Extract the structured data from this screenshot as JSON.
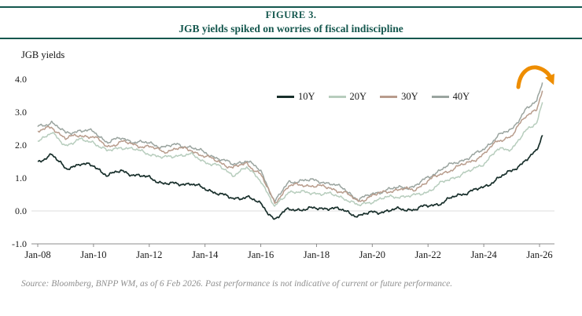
{
  "figure": {
    "label": "FIGURE 3.",
    "title": "JGB yields spiked on worries of fiscal indiscipline"
  },
  "source": "Source: Bloomberg, BNPP WM, as of 6 Feb 2026. Past performance is not indicative of current or future performance.",
  "colors": {
    "accent": "#14574E",
    "arrow": "#EE8D00",
    "axis_line": "#8c8c8c",
    "zero_line": "#dcdcdc",
    "text": "#1a1a1a"
  },
  "chart_data": {
    "type": "line",
    "title": "JGB yields",
    "xlabel": "",
    "ylabel": "",
    "ylim": [
      -1.0,
      4.0
    ],
    "grid": false,
    "legend_position": "top-center-inside",
    "y_ticks": [
      {
        "value": -1.0,
        "label": "-1.0"
      },
      {
        "value": 0.0,
        "label": "0.0"
      },
      {
        "value": 1.0,
        "label": "1.0"
      },
      {
        "value": 2.0,
        "label": "2.0"
      },
      {
        "value": 3.0,
        "label": "3.0"
      },
      {
        "value": 4.0,
        "label": "4.0"
      }
    ],
    "x_ticks": [
      {
        "year": 2008,
        "label": "Jan-08"
      },
      {
        "year": 2010,
        "label": "Jan-10"
      },
      {
        "year": 2012,
        "label": "Jan-12"
      },
      {
        "year": 2014,
        "label": "Jan-14"
      },
      {
        "year": 2016,
        "label": "Jan-16"
      },
      {
        "year": 2018,
        "label": "Jan-18"
      },
      {
        "year": 2020,
        "label": "Jan-20"
      },
      {
        "year": 2022,
        "label": "Jan-22"
      },
      {
        "year": 2024,
        "label": "Jan-24"
      },
      {
        "year": 2026,
        "label": "Jan-26"
      }
    ],
    "x_years": [
      2008.0,
      2008.5,
      2009.0,
      2009.5,
      2010.0,
      2010.5,
      2011.0,
      2011.5,
      2012.0,
      2012.5,
      2013.0,
      2013.5,
      2014.0,
      2014.5,
      2015.0,
      2015.5,
      2016.0,
      2016.5,
      2017.0,
      2017.5,
      2018.0,
      2018.5,
      2019.0,
      2019.5,
      2020.0,
      2020.5,
      2021.0,
      2021.5,
      2022.0,
      2022.5,
      2023.0,
      2023.5,
      2024.0,
      2024.5,
      2025.0,
      2025.5,
      2025.9,
      2026.1
    ],
    "series": [
      {
        "name": "10Y",
        "color": "#182F2B",
        "y": [
          1.45,
          1.75,
          1.25,
          1.45,
          1.35,
          1.1,
          1.2,
          1.1,
          1.0,
          0.85,
          0.8,
          0.85,
          0.65,
          0.55,
          0.35,
          0.45,
          0.2,
          -0.25,
          0.05,
          0.05,
          0.07,
          0.1,
          0.0,
          -0.15,
          -0.05,
          0.0,
          0.05,
          0.05,
          0.15,
          0.25,
          0.45,
          0.6,
          0.7,
          1.0,
          1.2,
          1.55,
          1.8,
          2.3
        ]
      },
      {
        "name": "20Y",
        "color": "#B7CDBD",
        "y": [
          2.15,
          2.35,
          2.0,
          2.15,
          2.1,
          1.8,
          1.95,
          1.85,
          1.75,
          1.6,
          1.7,
          1.7,
          1.5,
          1.35,
          1.1,
          1.3,
          0.95,
          0.1,
          0.6,
          0.55,
          0.55,
          0.5,
          0.4,
          0.15,
          0.3,
          0.4,
          0.45,
          0.45,
          0.6,
          0.85,
          1.05,
          1.2,
          1.45,
          1.85,
          1.9,
          2.4,
          2.7,
          3.3
        ]
      },
      {
        "name": "30Y",
        "color": "#B89C8C",
        "y": [
          2.4,
          2.55,
          2.2,
          2.3,
          2.25,
          1.95,
          2.1,
          2.0,
          1.95,
          1.8,
          1.9,
          1.85,
          1.65,
          1.5,
          1.3,
          1.45,
          1.1,
          0.25,
          0.75,
          0.8,
          0.75,
          0.7,
          0.55,
          0.3,
          0.45,
          0.6,
          0.65,
          0.65,
          0.9,
          1.15,
          1.3,
          1.5,
          1.7,
          2.15,
          2.25,
          2.9,
          3.1,
          3.6
        ]
      },
      {
        "name": "40Y",
        "color": "#9AA49F",
        "y": [
          2.55,
          2.7,
          2.35,
          2.45,
          2.4,
          2.1,
          2.2,
          2.1,
          2.05,
          1.95,
          2.0,
          1.95,
          1.75,
          1.6,
          1.4,
          1.55,
          1.2,
          0.3,
          0.85,
          0.95,
          0.9,
          0.85,
          0.65,
          0.35,
          0.5,
          0.65,
          0.7,
          0.75,
          1.0,
          1.3,
          1.45,
          1.65,
          1.85,
          2.3,
          2.45,
          3.1,
          3.3,
          3.9
        ]
      }
    ],
    "annotations": [
      {
        "type": "curved-arrow",
        "color": "#EE8D00",
        "near_x": 2026.1,
        "near_y": 4.0,
        "meaning": "highlights end-of-period yield spike"
      }
    ]
  }
}
